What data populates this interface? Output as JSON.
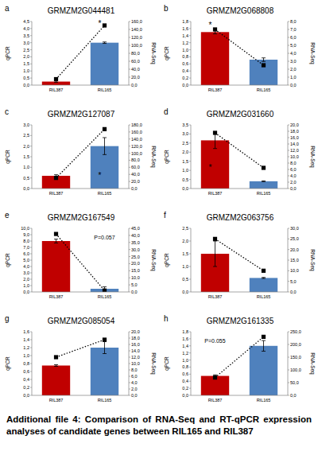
{
  "caption": "Additional file 4: Comparison of RNA-Seq and RT-qPCR expression analyses of candidate genes between RIL165 and RIL387",
  "chart_data": [
    {
      "type": "bar",
      "panel": "a",
      "title": "GRMZM2G044481",
      "ylabel": "qPCR",
      "y2label": "RNA-Seq",
      "categories": [
        "RIL387",
        "RIL165"
      ],
      "series": [
        {
          "type": "bar",
          "colors": [
            "#c00000",
            "#4f81bd"
          ],
          "values": [
            0.25,
            3.0
          ],
          "errors": [
            0.05,
            0.05
          ]
        },
        {
          "type": "line",
          "axis": "y2",
          "color": "#000000",
          "marker": "square",
          "line_style": "dotted",
          "values": [
            15,
            150
          ]
        }
      ],
      "ylim": [
        0,
        4.5
      ],
      "yticks": [
        {
          "value": 0,
          "label": "0,0"
        },
        {
          "value": 0.5,
          "label": "0,5"
        },
        {
          "value": 1,
          "label": "1,0"
        },
        {
          "value": 1.5,
          "label": "1,5"
        },
        {
          "value": 2,
          "label": "2,0"
        },
        {
          "value": 2.5,
          "label": "2,5"
        },
        {
          "value": 3,
          "label": "3,0"
        },
        {
          "value": 3.5,
          "label": "3,5"
        },
        {
          "value": 4,
          "label": "4,0"
        },
        {
          "value": 4.5,
          "label": "4,5"
        }
      ],
      "y2lim": [
        0,
        160
      ],
      "y2ticks": [
        {
          "value": 0,
          "label": "0,0"
        },
        {
          "value": 20,
          "label": "20,0"
        },
        {
          "value": 40,
          "label": "40,0"
        },
        {
          "value": 60,
          "label": "60,0"
        },
        {
          "value": 80,
          "label": "80,0"
        },
        {
          "value": 100,
          "label": "100,0"
        },
        {
          "value": 120,
          "label": "120,0"
        },
        {
          "value": 140,
          "label": "140,0"
        },
        {
          "value": 160,
          "label": "160,0"
        }
      ],
      "annotations": [
        {
          "text": "*",
          "x": "RIL165",
          "y": 157,
          "axis": "y2"
        }
      ],
      "grid": false
    },
    {
      "type": "bar",
      "panel": "b",
      "title": "GRMZM2G068808",
      "ylabel": "qPCR",
      "y2label": "RNA-Seq",
      "categories": [
        "RIL387",
        "RIL165"
      ],
      "series": [
        {
          "type": "bar",
          "colors": [
            "#c00000",
            "#4f81bd"
          ],
          "values": [
            1.5,
            0.72
          ],
          "errors": [
            0.05,
            0.05
          ]
        },
        {
          "type": "line",
          "axis": "y2",
          "color": "#000000",
          "marker": "square",
          "line_style": "dotted",
          "values": [
            7.0,
            2.5
          ]
        }
      ],
      "ylim": [
        0,
        1.8
      ],
      "yticks": [
        {
          "value": 0,
          "label": "0,0"
        },
        {
          "value": 0.2,
          "label": "0,2"
        },
        {
          "value": 0.4,
          "label": "0,4"
        },
        {
          "value": 0.6,
          "label": "0,6"
        },
        {
          "value": 0.8,
          "label": "0,8"
        },
        {
          "value": 1,
          "label": "1,0"
        },
        {
          "value": 1.2,
          "label": "1,2"
        },
        {
          "value": 1.4,
          "label": "1,4"
        },
        {
          "value": 1.6,
          "label": "1,6"
        },
        {
          "value": 1.8,
          "label": "1,8"
        }
      ],
      "y2lim": [
        0,
        8
      ],
      "y2ticks": [
        {
          "value": 0,
          "label": "0,0"
        },
        {
          "value": 1,
          "label": "1,0"
        },
        {
          "value": 2,
          "label": "2,0"
        },
        {
          "value": 3,
          "label": "3,0"
        },
        {
          "value": 4,
          "label": "4,0"
        },
        {
          "value": 5,
          "label": "5,0"
        },
        {
          "value": 6,
          "label": "6,0"
        },
        {
          "value": 7,
          "label": "7,0"
        },
        {
          "value": 8,
          "label": "8,0"
        }
      ],
      "annotations": [
        {
          "text": "*",
          "x": "RIL387",
          "y": 1.7,
          "axis": "y"
        }
      ],
      "grid": false
    },
    {
      "type": "bar",
      "panel": "c",
      "title": "GRMZM2G127087",
      "ylabel": "qPCR",
      "y2label": "RNA-Seq",
      "categories": [
        "RIL387",
        "RIL165"
      ],
      "series": [
        {
          "type": "bar",
          "colors": [
            "#c00000",
            "#4f81bd"
          ],
          "values": [
            0.6,
            2.0
          ],
          "errors": [
            0.05,
            0.4
          ]
        },
        {
          "type": "line",
          "axis": "y2",
          "color": "#000000",
          "marker": "square",
          "line_style": "dotted",
          "values": [
            30,
            168
          ]
        }
      ],
      "ylim": [
        0,
        3
      ],
      "yticks": [
        {
          "value": 0,
          "label": "0,0"
        },
        {
          "value": 0.5,
          "label": "0,5"
        },
        {
          "value": 1,
          "label": "1,0"
        },
        {
          "value": 1.5,
          "label": "1,5"
        },
        {
          "value": 2,
          "label": "2,0"
        },
        {
          "value": 2.5,
          "label": "2,5"
        },
        {
          "value": 3,
          "label": "3,0"
        }
      ],
      "y2lim": [
        0,
        180
      ],
      "y2ticks": [
        {
          "value": 0,
          "label": "0,0"
        },
        {
          "value": 20,
          "label": "20,0"
        },
        {
          "value": 40,
          "label": "40,0"
        },
        {
          "value": 60,
          "label": "60,0"
        },
        {
          "value": 80,
          "label": "80,0"
        },
        {
          "value": 100,
          "label": "100,0"
        },
        {
          "value": 120,
          "label": "120,0"
        },
        {
          "value": 140,
          "label": "140,0"
        },
        {
          "value": 160,
          "label": "160,0"
        },
        {
          "value": 180,
          "label": "180,0"
        }
      ],
      "annotations": [
        {
          "text": "*",
          "x": "RIL165",
          "y": 0.65,
          "axis": "y"
        }
      ],
      "grid": false
    },
    {
      "type": "bar",
      "panel": "d",
      "title": "GRMZM2G031660",
      "ylabel": "qPCR",
      "y2label": "RNA-Seq",
      "categories": [
        "RIL387",
        "RIL165"
      ],
      "series": [
        {
          "type": "bar",
          "colors": [
            "#c00000",
            "#4f81bd"
          ],
          "values": [
            2.65,
            0.4
          ],
          "errors": [
            0.45,
            0.02
          ]
        },
        {
          "type": "line",
          "axis": "y2",
          "color": "#000000",
          "marker": "square",
          "line_style": "dotted",
          "values": [
            17.5,
            6.5
          ]
        }
      ],
      "ylim": [
        0,
        3.5
      ],
      "yticks": [
        {
          "value": 0,
          "label": "0,0"
        },
        {
          "value": 0.5,
          "label": "0,5"
        },
        {
          "value": 1,
          "label": "1,0"
        },
        {
          "value": 1.5,
          "label": "1,5"
        },
        {
          "value": 2,
          "label": "2,0"
        },
        {
          "value": 2.5,
          "label": "2,5"
        },
        {
          "value": 3,
          "label": "3,0"
        },
        {
          "value": 3.5,
          "label": "3,5"
        }
      ],
      "y2lim": [
        0,
        20
      ],
      "y2ticks": [
        {
          "value": 0,
          "label": "0,0"
        },
        {
          "value": 2,
          "label": "2,0"
        },
        {
          "value": 4,
          "label": "4,0"
        },
        {
          "value": 6,
          "label": "6,0"
        },
        {
          "value": 8,
          "label": "8,0"
        },
        {
          "value": 10,
          "label": "10,0"
        },
        {
          "value": 12,
          "label": "12,0"
        },
        {
          "value": 14,
          "label": "14,0"
        },
        {
          "value": 16,
          "label": "16,0"
        },
        {
          "value": 18,
          "label": "18,0"
        },
        {
          "value": 20,
          "label": "20,0"
        }
      ],
      "annotations": [
        {
          "text": "*",
          "x": "RIL387",
          "y": 1.2,
          "axis": "y"
        }
      ],
      "grid": false
    },
    {
      "type": "bar",
      "panel": "e",
      "title": "GRMZM2G167549",
      "ylabel": "qPCR",
      "y2label": "RNA-Seq",
      "categories": [
        "RIL387",
        "RIL165"
      ],
      "series": [
        {
          "type": "bar",
          "colors": [
            "#c00000",
            "#4f81bd"
          ],
          "values": [
            8.0,
            0.5
          ],
          "errors": [
            0.3,
            0.3
          ]
        },
        {
          "type": "line",
          "axis": "y2",
          "color": "#000000",
          "marker": "square",
          "line_style": "dotted",
          "values": [
            41,
            1
          ]
        }
      ],
      "ylim": [
        0,
        10
      ],
      "yticks": [
        {
          "value": 0,
          "label": "0,0"
        },
        {
          "value": 1,
          "label": "1,0"
        },
        {
          "value": 2,
          "label": "2,0"
        },
        {
          "value": 3,
          "label": "3,0"
        },
        {
          "value": 4,
          "label": "4,0"
        },
        {
          "value": 5,
          "label": "5,0"
        },
        {
          "value": 6,
          "label": "6,0"
        },
        {
          "value": 7,
          "label": "7,0"
        },
        {
          "value": 8,
          "label": "8,0"
        },
        {
          "value": 9,
          "label": "9,0"
        },
        {
          "value": 10,
          "label": "10,0"
        }
      ],
      "y2lim": [
        0,
        45
      ],
      "y2ticks": [
        {
          "value": 0,
          "label": "0,0"
        },
        {
          "value": 5,
          "label": "5,0"
        },
        {
          "value": 10,
          "label": "10,0"
        },
        {
          "value": 15,
          "label": "15,0"
        },
        {
          "value": 20,
          "label": "20,0"
        },
        {
          "value": 25,
          "label": "25,0"
        },
        {
          "value": 30,
          "label": "30,0"
        },
        {
          "value": 35,
          "label": "35,0"
        },
        {
          "value": 40,
          "label": "40,0"
        },
        {
          "value": 45,
          "label": "45,0"
        }
      ],
      "annotations": [
        {
          "text": "P=0.057",
          "x": "RIL165",
          "y": 8.6,
          "axis": "y"
        }
      ],
      "grid": false
    },
    {
      "type": "bar",
      "panel": "f",
      "title": "GRMZM2G063756",
      "ylabel": "qPCR",
      "y2label": "RNA-Seq",
      "categories": [
        "RIL387",
        "RIL165"
      ],
      "series": [
        {
          "type": "bar",
          "colors": [
            "#c00000",
            "#4f81bd"
          ],
          "values": [
            1.5,
            0.55
          ],
          "errors": [
            0.5,
            0.02
          ]
        },
        {
          "type": "line",
          "axis": "y2",
          "color": "#000000",
          "marker": "square",
          "line_style": "dotted",
          "values": [
            25,
            10
          ]
        }
      ],
      "ylim": [
        0,
        2.5
      ],
      "yticks": [
        {
          "value": 0,
          "label": "0,0"
        },
        {
          "value": 0.5,
          "label": "0,5"
        },
        {
          "value": 1,
          "label": "1,0"
        },
        {
          "value": 1.5,
          "label": "1,5"
        },
        {
          "value": 2,
          "label": "2,0"
        },
        {
          "value": 2.5,
          "label": "2,5"
        }
      ],
      "y2lim": [
        0,
        30
      ],
      "y2ticks": [
        {
          "value": 0,
          "label": "0,0"
        },
        {
          "value": 5,
          "label": "5,0"
        },
        {
          "value": 10,
          "label": "10,0"
        },
        {
          "value": 15,
          "label": "15,0"
        },
        {
          "value": 20,
          "label": "20,0"
        },
        {
          "value": 25,
          "label": "25,0"
        },
        {
          "value": 30,
          "label": "30,0"
        }
      ],
      "grid": false
    },
    {
      "type": "bar",
      "panel": "g",
      "title": "GRMZM2G085054",
      "ylabel": "qPCR",
      "y2label": "RNA-Seq",
      "categories": [
        "RIL387",
        "RIL165"
      ],
      "series": [
        {
          "type": "bar",
          "colors": [
            "#c00000",
            "#4f81bd"
          ],
          "values": [
            0.75,
            1.2
          ],
          "errors": [
            0.02,
            0.15
          ]
        },
        {
          "type": "line",
          "axis": "y2",
          "color": "#000000",
          "marker": "square",
          "line_style": "dotted",
          "values": [
            12,
            17.5
          ]
        }
      ],
      "ylim": [
        0,
        1.6
      ],
      "yticks": [
        {
          "value": 0,
          "label": "0,0"
        },
        {
          "value": 0.2,
          "label": "0,2"
        },
        {
          "value": 0.4,
          "label": "0,4"
        },
        {
          "value": 0.6,
          "label": "0,6"
        },
        {
          "value": 0.8,
          "label": "0,8"
        },
        {
          "value": 1,
          "label": "1,0"
        },
        {
          "value": 1.2,
          "label": "1,2"
        },
        {
          "value": 1.4,
          "label": "1,4"
        },
        {
          "value": 1.6,
          "label": "1,6"
        }
      ],
      "y2lim": [
        0,
        20
      ],
      "y2ticks": [
        {
          "value": 0,
          "label": "0,0"
        },
        {
          "value": 2,
          "label": "2,0"
        },
        {
          "value": 4,
          "label": "4,0"
        },
        {
          "value": 6,
          "label": "6,0"
        },
        {
          "value": 8,
          "label": "8,0"
        },
        {
          "value": 10,
          "label": "10,0"
        },
        {
          "value": 12,
          "label": "12,0"
        },
        {
          "value": 14,
          "label": "14,0"
        },
        {
          "value": 16,
          "label": "16,0"
        },
        {
          "value": 18,
          "label": "18,0"
        },
        {
          "value": 20,
          "label": "20,0"
        }
      ],
      "grid": false
    },
    {
      "type": "bar",
      "panel": "h",
      "title": "GRMZM2G161335",
      "ylabel": "qPCR",
      "y2label": "RNA-Seq",
      "categories": [
        "RIL387",
        "RIL165"
      ],
      "series": [
        {
          "type": "bar",
          "colors": [
            "#c00000",
            "#4f81bd"
          ],
          "values": [
            0.55,
            1.4
          ],
          "errors": [
            0.03,
            0.15
          ]
        },
        {
          "type": "line",
          "axis": "y2",
          "color": "#000000",
          "marker": "square",
          "line_style": "dotted",
          "values": [
            70,
            230
          ]
        }
      ],
      "ylim": [
        0,
        1.8
      ],
      "yticks": [
        {
          "value": 0,
          "label": "0,0"
        },
        {
          "value": 0.2,
          "label": "0,2"
        },
        {
          "value": 0.4,
          "label": "0,4"
        },
        {
          "value": 0.6,
          "label": "0,6"
        },
        {
          "value": 0.8,
          "label": "0,8"
        },
        {
          "value": 1,
          "label": "1,0"
        },
        {
          "value": 1.2,
          "label": "1,2"
        },
        {
          "value": 1.4,
          "label": "1,4"
        },
        {
          "value": 1.6,
          "label": "1,6"
        },
        {
          "value": 1.8,
          "label": "1,8"
        }
      ],
      "y2lim": [
        0,
        250
      ],
      "y2ticks": [
        {
          "value": 0,
          "label": "0,0"
        },
        {
          "value": 50,
          "label": "50,0"
        },
        {
          "value": 100,
          "label": "100,0"
        },
        {
          "value": 150,
          "label": "150,0"
        },
        {
          "value": 200,
          "label": "200,0"
        },
        {
          "value": 250,
          "label": "250,0"
        }
      ],
      "annotations": [
        {
          "text": "P=0.055",
          "x": "RIL387",
          "y": 1.55,
          "axis": "y"
        }
      ],
      "grid": false
    }
  ]
}
